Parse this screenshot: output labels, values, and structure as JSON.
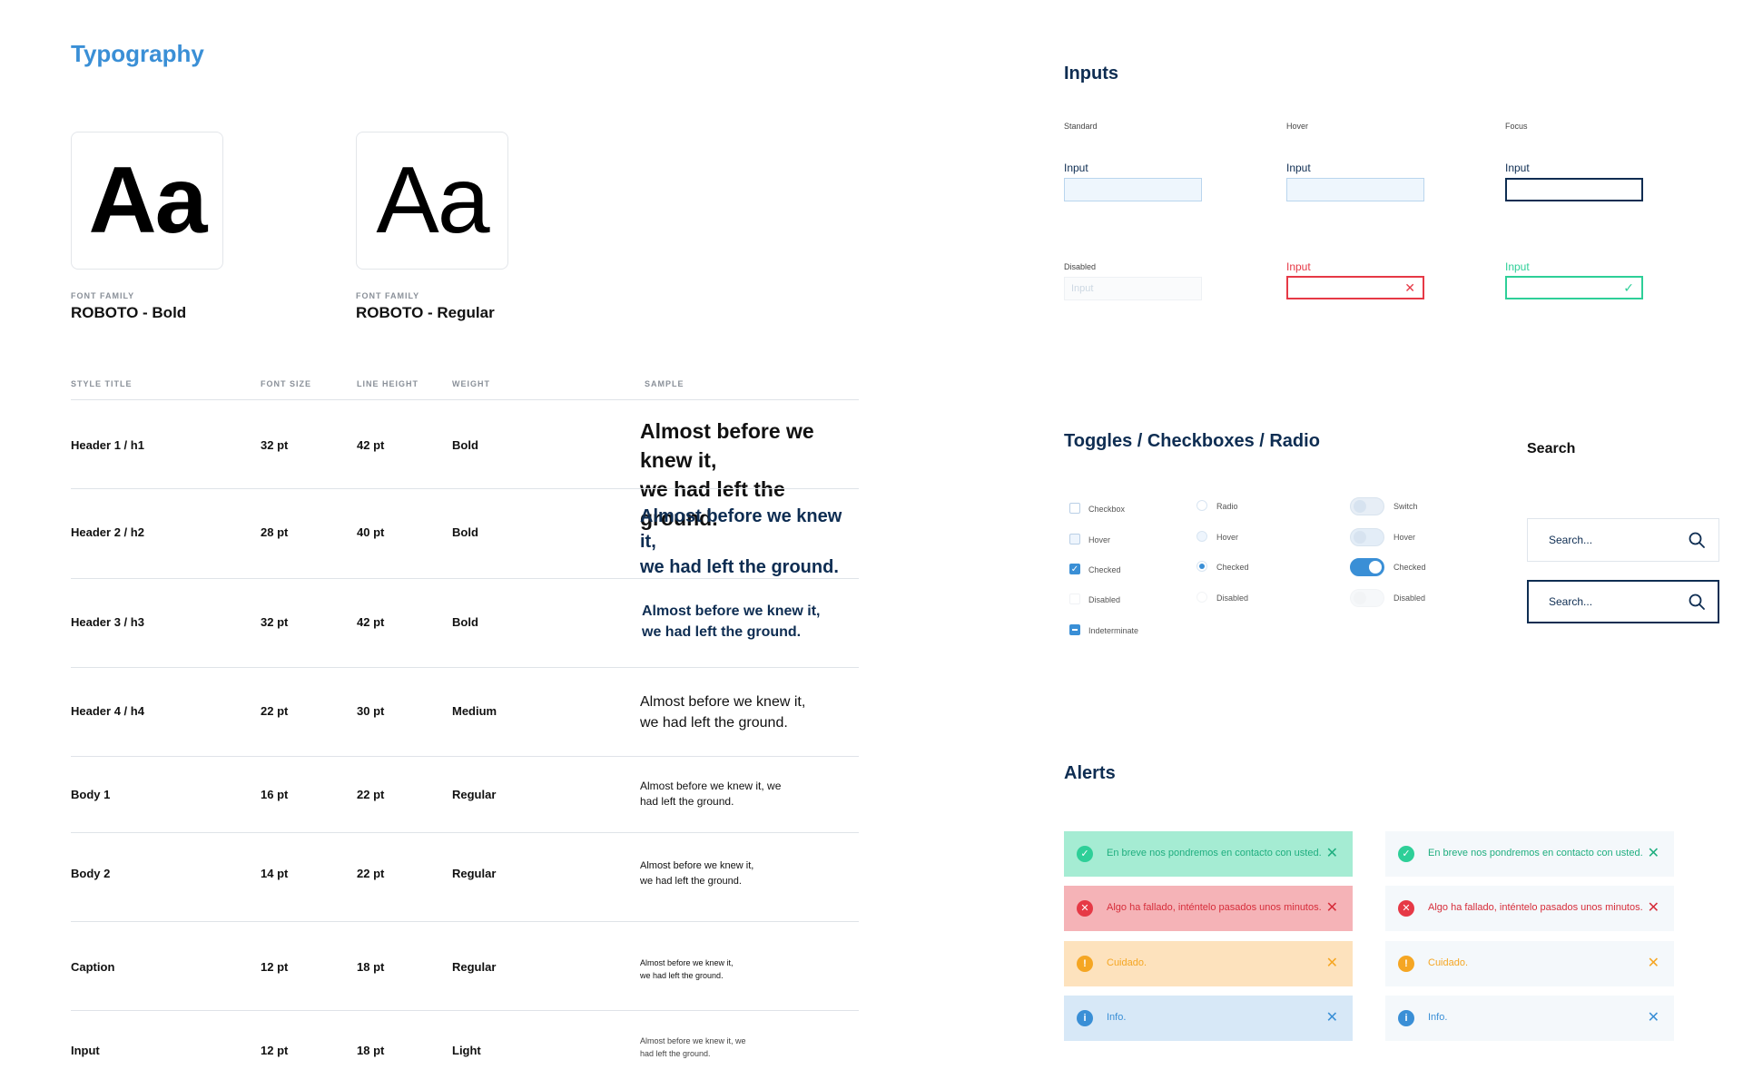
{
  "typography": {
    "title": "Typography",
    "fonts": [
      {
        "glyph": "Aa",
        "label": "FONT FAMILY",
        "name": "ROBOTO - Bold"
      },
      {
        "glyph": "Aa",
        "label": "FONT FAMILY",
        "name": "ROBOTO - Regular"
      }
    ],
    "headers": [
      "STYLE TITLE",
      "FONT SIZE",
      "LINE HEIGHT",
      "WEIGHT",
      "SAMPLE"
    ],
    "rows": [
      {
        "style": "Header 1 / h1",
        "size": "32 pt",
        "line": "42 pt",
        "weight": "Bold",
        "sample1": "Almost before we knew it,",
        "sample2": "we had left the ground."
      },
      {
        "style": "Header 2 / h2",
        "size": "28 pt",
        "line": "40 pt",
        "weight": "Bold",
        "sample1": "Almost before we knew it,",
        "sample2": "we had left the ground."
      },
      {
        "style": "Header 3 / h3",
        "size": "32 pt",
        "line": "42 pt",
        "weight": "Bold",
        "sample1": "Almost before we knew it,",
        "sample2": "we had left the ground."
      },
      {
        "style": "Header 4 / h4",
        "size": "22 pt",
        "line": "30 pt",
        "weight": "Medium",
        "sample1": "Almost before we knew it,",
        "sample2": "we had left the ground."
      },
      {
        "style": "Body 1",
        "size": "16 pt",
        "line": "22 pt",
        "weight": "Regular",
        "sample1": "Almost before we knew it, we",
        "sample2": "had left the ground."
      },
      {
        "style": "Body 2",
        "size": "14 pt",
        "line": "22 pt",
        "weight": "Regular",
        "sample1": "Almost before we knew it,",
        "sample2": "we had left the ground."
      },
      {
        "style": "Caption",
        "size": "12 pt",
        "line": "18 pt",
        "weight": "Regular",
        "sample1": "Almost before we knew it,",
        "sample2": "we had left the ground."
      },
      {
        "style": "Input",
        "size": "12 pt",
        "line": "18 pt",
        "weight": "Light",
        "sample1": "Almost before we knew it, we",
        "sample2": "had left the ground."
      }
    ]
  },
  "inputs": {
    "title": "Inputs",
    "states": [
      "Standard",
      "Hover",
      "Focus"
    ],
    "label": "Input",
    "disabled_label": "Disabled",
    "disabled_placeholder": "Input",
    "error_label": "Input",
    "success_label": "Input"
  },
  "toggles": {
    "title": "Toggles / Checkboxes / Radio",
    "checkboxes": [
      "Checkbox",
      "Hover",
      "Checked",
      "Disabled",
      "Indeterminate"
    ],
    "radios": [
      "Radio",
      "Hover",
      "Checked",
      "Disabled"
    ],
    "switches": [
      "Switch",
      "Hover",
      "Checked",
      "Disabled"
    ]
  },
  "search": {
    "title": "Search",
    "placeholder": "Search...",
    "placeholder_focus": "Search..."
  },
  "alerts": {
    "title": "Alerts",
    "success": "En breve nos pondremos en contacto con usted.",
    "error": "Algo ha fallado, inténtelo pasados unos minutos.",
    "warning": "Cuidado.",
    "info": "Info.",
    "colors": {
      "success": "#2ecf98",
      "error": "#e63946",
      "warning": "#f5a623",
      "info": "#3a8fd6"
    }
  },
  "colors": {
    "accent": "#3a8fd6",
    "navy": "#0e2d52"
  }
}
